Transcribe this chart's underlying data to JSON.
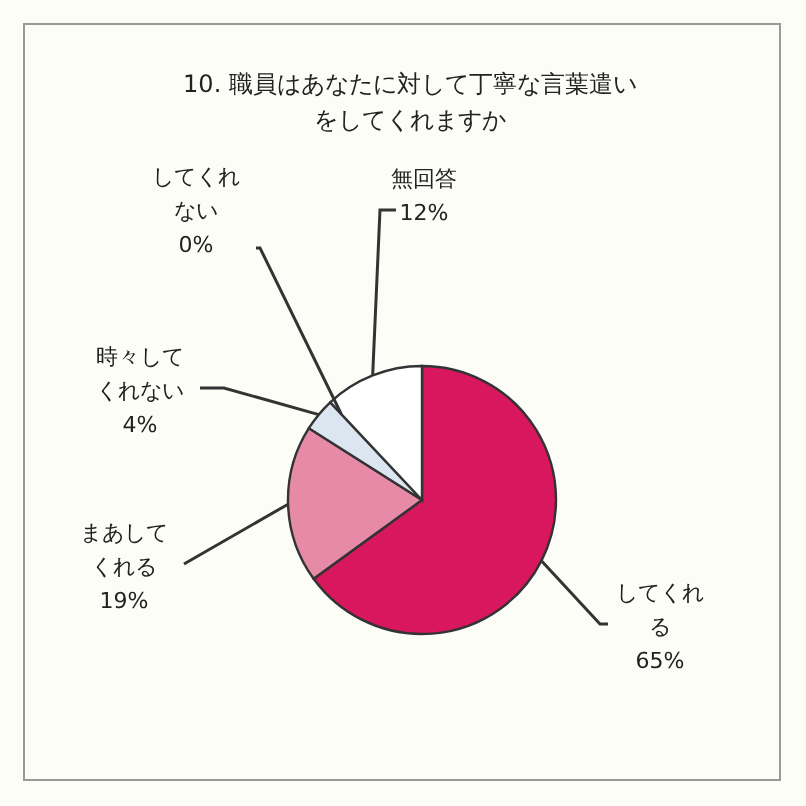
{
  "chart_data": {
    "type": "pie",
    "title": "10. 職員はあなたに対して丁寧な言葉遣いをしてくれますか",
    "categories": [
      "してくれる",
      "まあしてくれる",
      "時々してくれない",
      "してくれない",
      "無回答"
    ],
    "values": [
      65,
      19,
      4,
      0,
      12
    ],
    "value_labels": [
      "65%",
      "19%",
      "4%",
      "0%",
      "12%"
    ],
    "colors": [
      "#d8175f",
      "#e68aa8",
      "#dce6f0",
      "#c8d8ea",
      "#ffffff"
    ]
  }
}
